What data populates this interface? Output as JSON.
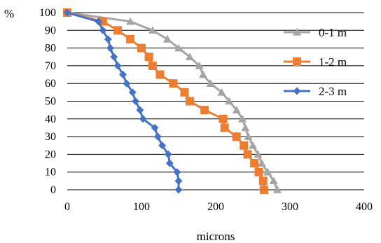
{
  "chart_data": {
    "type": "line",
    "xlabel": "microns",
    "ylabel": "%",
    "xlim": [
      0,
      400
    ],
    "ylim": [
      0,
      100
    ],
    "x_ticks": [
      "0",
      "100",
      "200",
      "300",
      "400"
    ],
    "y_ticks": [
      "0",
      "10",
      "20",
      "30",
      "40",
      "50",
      "60",
      "70",
      "80",
      "90",
      "100"
    ],
    "grid": "horizontal",
    "legend_position": "right",
    "series": [
      {
        "name": "0-1 m",
        "color": "#a5a5a5",
        "marker": "triangle",
        "points": [
          [
            0,
            100
          ],
          [
            85,
            95
          ],
          [
            115,
            90
          ],
          [
            135,
            85
          ],
          [
            150,
            80
          ],
          [
            165,
            75
          ],
          [
            178,
            70
          ],
          [
            183,
            65
          ],
          [
            193,
            60
          ],
          [
            208,
            55
          ],
          [
            218,
            50
          ],
          [
            228,
            45
          ],
          [
            236,
            40
          ],
          [
            240,
            35
          ],
          [
            244,
            30
          ],
          [
            250,
            25
          ],
          [
            257,
            20
          ],
          [
            262,
            15
          ],
          [
            270,
            10
          ],
          [
            278,
            5
          ],
          [
            283,
            0
          ]
        ]
      },
      {
        "name": "1-2 m",
        "color": "#ed7d31",
        "marker": "square",
        "points": [
          [
            0,
            100
          ],
          [
            48,
            95
          ],
          [
            68,
            90
          ],
          [
            85,
            85
          ],
          [
            100,
            80
          ],
          [
            110,
            75
          ],
          [
            115,
            70
          ],
          [
            125,
            65
          ],
          [
            143,
            60
          ],
          [
            158,
            55
          ],
          [
            165,
            50
          ],
          [
            185,
            45
          ],
          [
            210,
            40
          ],
          [
            212,
            35
          ],
          [
            228,
            30
          ],
          [
            238,
            25
          ],
          [
            243,
            20
          ],
          [
            252,
            15
          ],
          [
            258,
            10
          ],
          [
            264,
            5
          ],
          [
            265,
            0
          ]
        ]
      },
      {
        "name": "2-3 m",
        "color": "#4472c4",
        "marker": "diamond",
        "points": [
          [
            0,
            100
          ],
          [
            42,
            95
          ],
          [
            48,
            90
          ],
          [
            55,
            85
          ],
          [
            58,
            80
          ],
          [
            63,
            75
          ],
          [
            68,
            70
          ],
          [
            75,
            65
          ],
          [
            80,
            60
          ],
          [
            88,
            55
          ],
          [
            92,
            50
          ],
          [
            98,
            45
          ],
          [
            102,
            40
          ],
          [
            118,
            35
          ],
          [
            122,
            30
          ],
          [
            128,
            25
          ],
          [
            136,
            20
          ],
          [
            138,
            15
          ],
          [
            148,
            10
          ],
          [
            150,
            5
          ],
          [
            150,
            0
          ]
        ]
      }
    ]
  }
}
